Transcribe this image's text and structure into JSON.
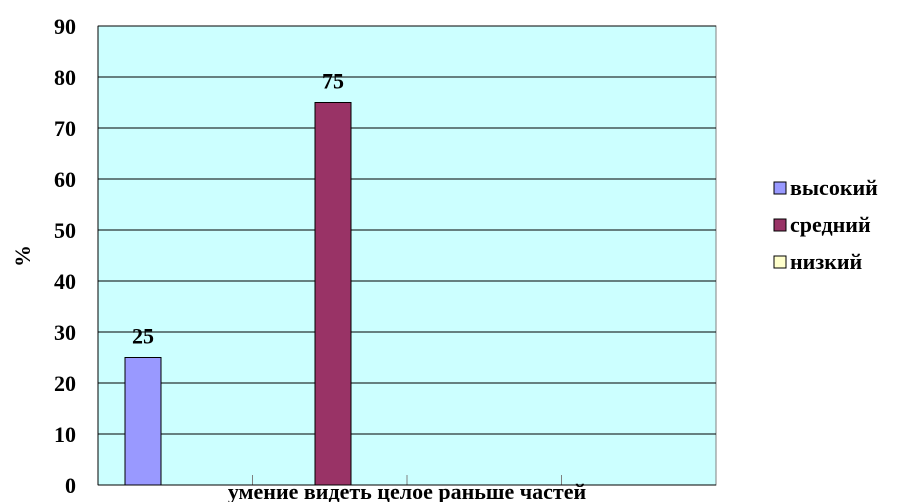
{
  "chart_data": {
    "type": "bar",
    "title": "",
    "xlabel": "умение видеть целое раньше частей",
    "ylabel": "%",
    "ylim": [
      0,
      90
    ],
    "ytick_step": 10,
    "yticks": [
      "0",
      "10",
      "20",
      "30",
      "40",
      "50",
      "60",
      "70",
      "80",
      "90"
    ],
    "grid": true,
    "legend_position": "right",
    "plot_background": "#ccffff",
    "categories": [
      "умение видеть целое раньше частей"
    ],
    "series": [
      {
        "name": "высокий",
        "values": [
          25
        ],
        "color": "#9999ff",
        "label": "25"
      },
      {
        "name": "средний",
        "values": [
          75
        ],
        "color": "#993366",
        "label": "75"
      },
      {
        "name": "низкий",
        "values": [
          0
        ],
        "color": "#ffffcc",
        "label": ""
      }
    ]
  }
}
